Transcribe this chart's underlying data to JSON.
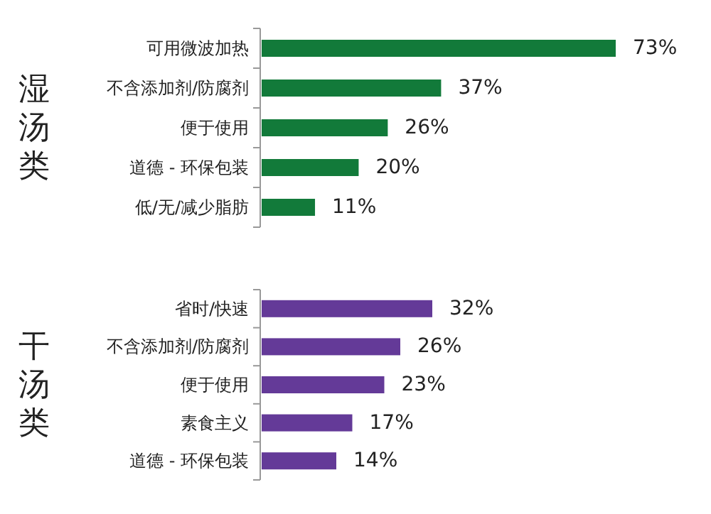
{
  "chart_data": [
    {
      "type": "bar",
      "orientation": "horizontal",
      "ylabel": "湿汤类",
      "categories": [
        "可用微波加热",
        "不含添加剂/防腐剂",
        "便于使用",
        "道德 - 环保包装",
        "低/无/减少脂肪"
      ],
      "series": [
        {
          "color": "#127a3a",
          "values": [
            73,
            37,
            26,
            20,
            11
          ],
          "value_labels": [
            "73%",
            "37%",
            "26%",
            "20%",
            "11%"
          ]
        }
      ]
    },
    {
      "type": "bar",
      "orientation": "horizontal",
      "ylabel": "干汤类",
      "categories": [
        "省时/快速",
        "不含添加剂/防腐剂",
        "便于使用",
        "素食主义",
        "道德 - 环保包装"
      ],
      "series": [
        {
          "color": "#643a98",
          "values": [
            32,
            26,
            23,
            17,
            14
          ],
          "value_labels": [
            "32%",
            "26%",
            "23%",
            "17%",
            "14%"
          ]
        }
      ]
    }
  ]
}
